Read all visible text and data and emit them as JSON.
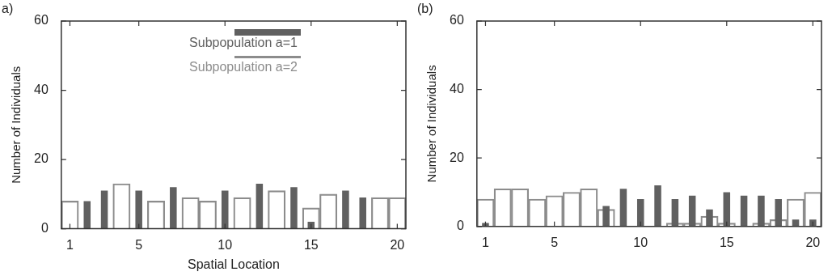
{
  "chart_data": [
    {
      "type": "bar",
      "title": "a)",
      "xlabel": "Spatial Location",
      "ylabel": "Number of Individuals",
      "x": [
        1,
        2,
        3,
        4,
        5,
        6,
        7,
        8,
        9,
        10,
        11,
        12,
        13,
        14,
        15,
        16,
        17,
        18,
        19,
        20
      ],
      "series": [
        {
          "name": "Subpopulation a=1",
          "color": "#606060",
          "values": [
            0,
            8,
            11,
            0,
            11,
            0,
            12,
            0,
            0,
            11,
            0,
            13,
            0,
            12,
            2,
            0,
            11,
            9,
            0,
            0
          ]
        },
        {
          "name": "Subpopulation a=2",
          "color": "#8c8c8c",
          "values": [
            8,
            0,
            0,
            13,
            0,
            8,
            0,
            9,
            8,
            0,
            9,
            0,
            11,
            0,
            6,
            10,
            0,
            0,
            9,
            9
          ]
        }
      ],
      "xlim": [
        0.5,
        20.5
      ],
      "xticks": [
        1,
        5,
        10,
        15,
        20
      ],
      "ylim": [
        0,
        60
      ],
      "yticks": [
        0,
        20,
        40,
        60
      ],
      "legend": "top right",
      "grid": false
    },
    {
      "type": "bar",
      "title": "(b)",
      "ylabel": "Number of Individuals",
      "x": [
        1,
        2,
        3,
        4,
        5,
        6,
        7,
        8,
        9,
        10,
        11,
        12,
        13,
        14,
        15,
        16,
        17,
        18,
        19,
        20
      ],
      "series": [
        {
          "color": "#606060",
          "values": [
            1,
            0,
            0,
            0,
            0,
            0,
            0,
            6,
            11,
            8,
            12,
            8,
            9,
            5,
            10,
            9,
            9,
            8,
            2,
            2
          ]
        },
        {
          "color": "#8c8c8c",
          "values": [
            8,
            11,
            11,
            8,
            9,
            10,
            11,
            5,
            0,
            0,
            0,
            1,
            1,
            3,
            1,
            0,
            1,
            2,
            8,
            10
          ]
        }
      ],
      "xlim": [
        0.5,
        20.5
      ],
      "xticks": [
        1,
        5,
        10,
        15,
        20
      ],
      "ylim": [
        0,
        60
      ],
      "yticks": [
        0,
        20,
        40,
        60
      ],
      "legend": false,
      "grid": false
    }
  ]
}
